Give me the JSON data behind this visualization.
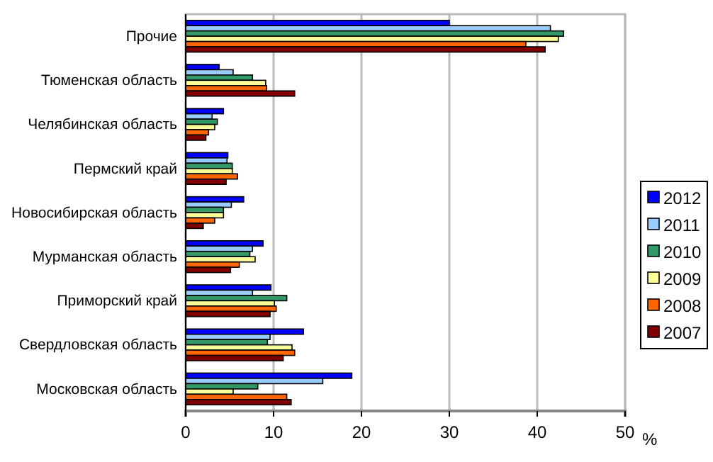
{
  "chart_data": {
    "type": "bar",
    "orientation": "horizontal",
    "categories": [
      "Прочие",
      "Тюменская область",
      "Челябинская область",
      "Пермский край",
      "Новосибирская область",
      "Мурманская область",
      "Приморский край",
      "Свердловская область",
      "Московская область"
    ],
    "series": [
      {
        "name": "2012",
        "color": "#0000ff",
        "values": [
          30.0,
          3.8,
          4.3,
          4.8,
          6.6,
          8.8,
          9.7,
          13.4,
          18.9
        ]
      },
      {
        "name": "2011",
        "color": "#99ccff",
        "values": [
          41.5,
          5.4,
          3.0,
          4.7,
          5.2,
          7.6,
          7.6,
          9.6,
          15.6
        ]
      },
      {
        "name": "2010",
        "color": "#339966",
        "values": [
          43.0,
          7.6,
          3.6,
          5.3,
          4.3,
          7.3,
          11.5,
          9.3,
          8.2
        ]
      },
      {
        "name": "2009",
        "color": "#ffff99",
        "values": [
          42.4,
          9.1,
          3.3,
          5.3,
          4.3,
          7.9,
          10.1,
          12.1,
          5.4
        ]
      },
      {
        "name": "2008",
        "color": "#ff6600",
        "values": [
          38.7,
          9.2,
          2.6,
          5.9,
          3.3,
          6.1,
          10.3,
          12.4,
          11.5
        ]
      },
      {
        "name": "2007",
        "color": "#800000",
        "values": [
          40.9,
          12.4,
          2.3,
          4.6,
          2.0,
          5.1,
          9.6,
          11.1,
          12.0
        ]
      }
    ],
    "xlabel": "%",
    "xlim": [
      0,
      50
    ],
    "xticks": [
      0,
      10,
      20,
      30,
      40,
      50
    ],
    "grid": "x",
    "legend": "right"
  }
}
